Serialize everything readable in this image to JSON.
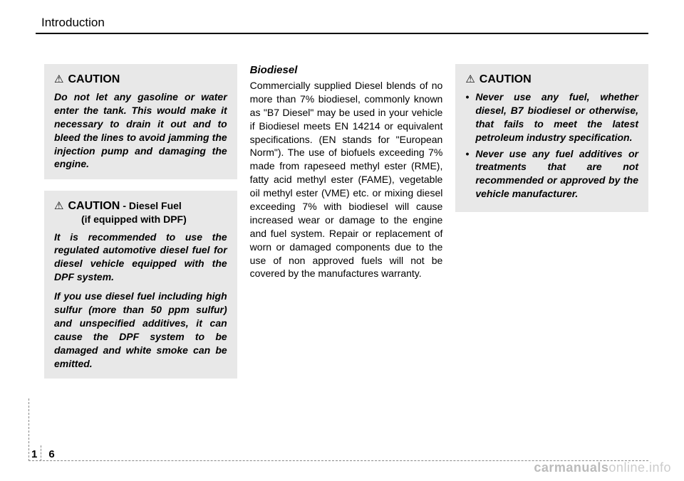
{
  "header": {
    "section_title": "Introduction"
  },
  "column1": {
    "caution1": {
      "title": "CAUTION",
      "body": "Do not let any gasoline or water enter the tank. This would make it necessary to drain it out and to bleed the lines to avoid jamming the injection pump and damaging the engine."
    },
    "caution2": {
      "title": "CAUTION",
      "subtitle": "- Diesel Fuel",
      "subtitle2": "(if equipped with DPF)",
      "body1": "It is recommended to use the regulated automotive diesel fuel for diesel vehicle equipped with the DPF system.",
      "body2": "If you use diesel fuel including high sulfur (more than 50 ppm sulfur) and unspecified additives, it can cause the DPF system to be damaged and white smoke can be emitted."
    }
  },
  "column2": {
    "heading": "Biodiesel",
    "body": "Commercially supplied Diesel blends of no more than 7% biodiesel, commonly known as \"B7 Diesel\" may be used in your vehicle if Biodiesel meets EN 14214 or equivalent specifications. (EN stands for \"European Norm\"). The use of biofuels exceeding 7% made from rapeseed methyl ester (RME), fatty acid methyl ester (FAME), vegetable oil methyl ester (VME) etc. or mixing diesel exceeding 7% with biodiesel will cause increased wear or damage to the engine and fuel system. Repair or replacement of worn or damaged components due to the use of non approved fuels will not be covered by the manufactures warranty."
  },
  "column3": {
    "caution": {
      "title": "CAUTION",
      "bullet1": "Never use any fuel, whether diesel, B7 biodiesel or otherwise, that fails to meet the latest petroleum industry specification.",
      "bullet2": "Never use any fuel additives or treatments that are not recommended or approved by the vehicle manufacturer."
    }
  },
  "footer": {
    "page_chapter": "1",
    "page_number": "6"
  },
  "watermark": {
    "part1": "carmanuals",
    "part2": "online.info"
  },
  "colors": {
    "box_bg": "#e8e8e8",
    "text": "#000000",
    "watermark_light": "#cccccc",
    "watermark_bold": "#bbbbbb"
  }
}
